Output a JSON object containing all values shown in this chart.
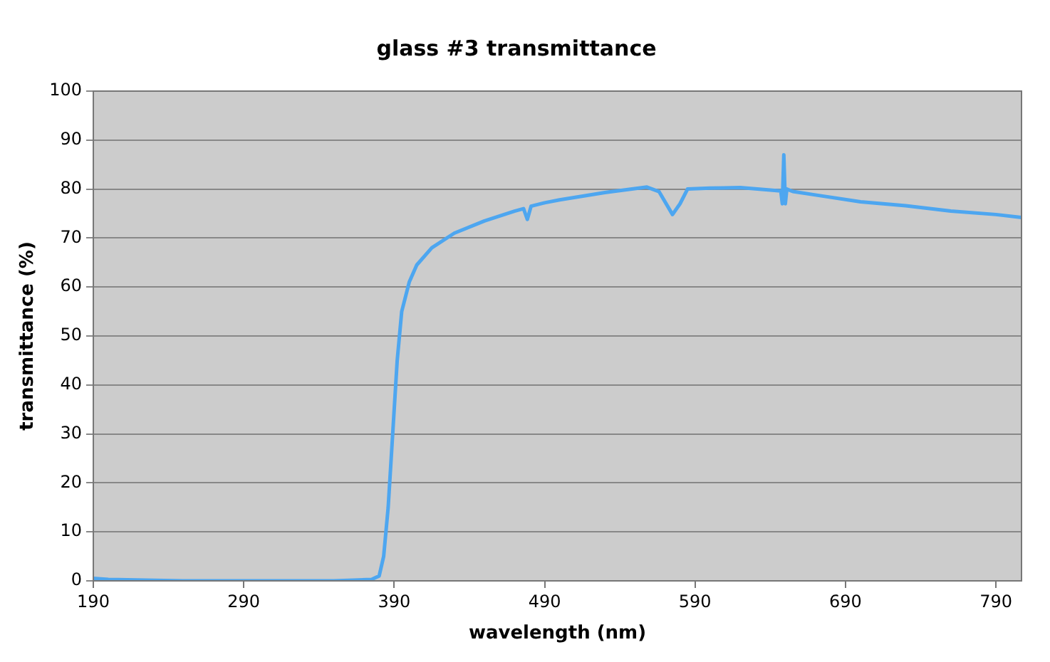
{
  "chart_data": {
    "type": "line",
    "title": "glass #3 transmittance",
    "xlabel": "wavelength (nm)",
    "ylabel": "transmittance (%)",
    "xlim": [
      190,
      807
    ],
    "xticks": [
      190,
      290,
      390,
      490,
      590,
      690,
      790
    ],
    "ylim": [
      0,
      100
    ],
    "yticks": [
      0,
      10,
      20,
      30,
      40,
      50,
      60,
      70,
      80,
      90,
      100
    ],
    "grid": "y",
    "legend": false,
    "marker": "none",
    "line_style": "solid",
    "series": [
      {
        "color": "#4da6f0",
        "x": [
          190,
          200,
          250,
          300,
          350,
          375,
          380,
          383,
          386,
          389,
          392,
          395,
          400,
          405,
          415,
          430,
          450,
          470,
          476,
          478.5,
          481,
          490,
          500,
          530,
          558,
          566,
          575,
          580,
          585,
          600,
          620,
          640,
          647,
          648,
          649,
          650,
          651,
          655,
          670,
          700,
          730,
          760,
          790,
          807
        ],
        "values": [
          0.5,
          0.3,
          0,
          0,
          0,
          0.3,
          1,
          5,
          15,
          30,
          45,
          55,
          61,
          64.5,
          68,
          71,
          73.5,
          75.5,
          76,
          73.8,
          76.5,
          77.2,
          77.8,
          79.3,
          80.4,
          79.5,
          74.8,
          77,
          80,
          80.2,
          80.3,
          79.8,
          79.6,
          77,
          87,
          77,
          80,
          79.5,
          78.8,
          77.4,
          76.6,
          75.5,
          74.8,
          74.2
        ]
      }
    ]
  }
}
